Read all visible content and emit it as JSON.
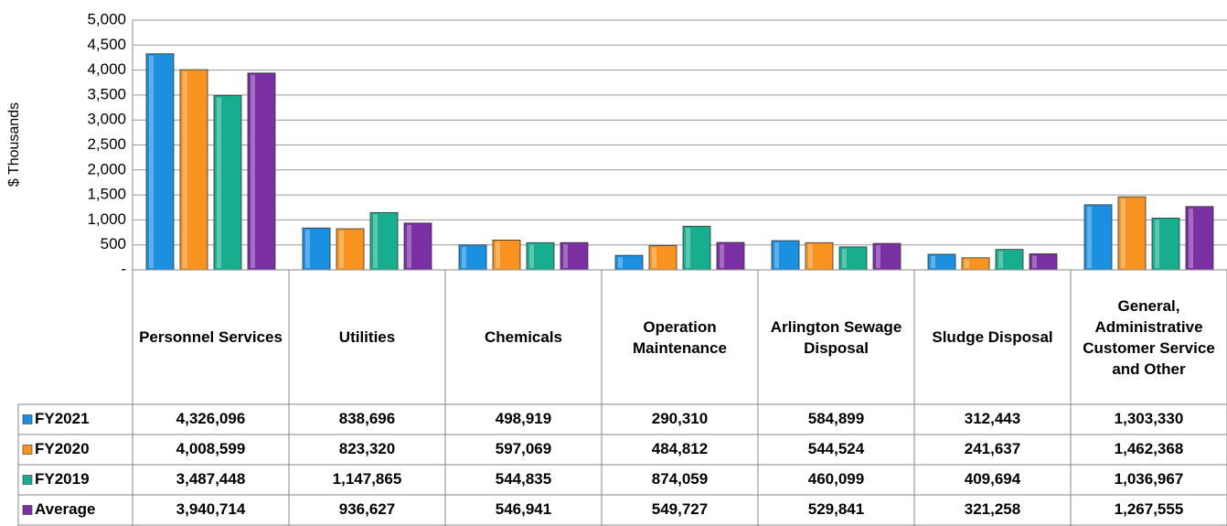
{
  "chart_data": {
    "type": "bar",
    "y_label": "$ Thousands",
    "categories": [
      "Personnel Services",
      "Utilities",
      "Chemicals",
      "Operation Maintenance",
      "Arlington Sewage Disposal",
      "Sludge Disposal",
      "General, Administrative Customer Service and Other"
    ],
    "series": [
      {
        "name": "FY2021",
        "color": "#1b8fe0",
        "values": [
          4326.096,
          838.696,
          498.919,
          290.31,
          584.899,
          312.443,
          1303.33
        ],
        "value_labels": [
          "4,326,096",
          "838,696",
          "498,919",
          "290,310",
          "584,899",
          "312,443",
          "1,303,330"
        ]
      },
      {
        "name": "FY2020",
        "color": "#f7931e",
        "values": [
          4008.599,
          823.32,
          597.069,
          484.812,
          544.524,
          241.637,
          1462.368
        ],
        "value_labels": [
          "4,008,599",
          "823,320",
          "597,069",
          "484,812",
          "544,524",
          "241,637",
          "1,462,368"
        ]
      },
      {
        "name": "FY2019",
        "color": "#17ad8f",
        "values": [
          3487.448,
          1147.865,
          544.835,
          874.059,
          460.099,
          409.694,
          1036.967
        ],
        "value_labels": [
          "3,487,448",
          "1,147,865",
          "544,835",
          "874,059",
          "460,099",
          "409,694",
          "1,036,967"
        ]
      },
      {
        "name": "Average",
        "color": "#7a2fa2",
        "values": [
          3940.714,
          936.627,
          546.941,
          549.727,
          529.841,
          321.258,
          1267.555
        ],
        "value_labels": [
          "3,940,714",
          "936,627",
          "546,941",
          "549,727",
          "529,841",
          "321,258",
          "1,267,555"
        ]
      }
    ],
    "ylim": [
      0,
      5000
    ],
    "yticks": [
      {
        "value": 0,
        "label": "-"
      },
      500,
      {
        "value": 1000,
        "label": "1,000"
      },
      {
        "value": 1500,
        "label": "1,500"
      },
      {
        "value": 2000,
        "label": "2,000"
      },
      {
        "value": 2500,
        "label": "2,500"
      },
      {
        "value": 3000,
        "label": "3,000"
      },
      {
        "value": 3500,
        "label": "3,500"
      },
      {
        "value": 4000,
        "label": "4,000"
      },
      {
        "value": 4500,
        "label": "4,500"
      },
      {
        "value": 5000,
        "label": "5,000"
      }
    ],
    "grid": true
  }
}
